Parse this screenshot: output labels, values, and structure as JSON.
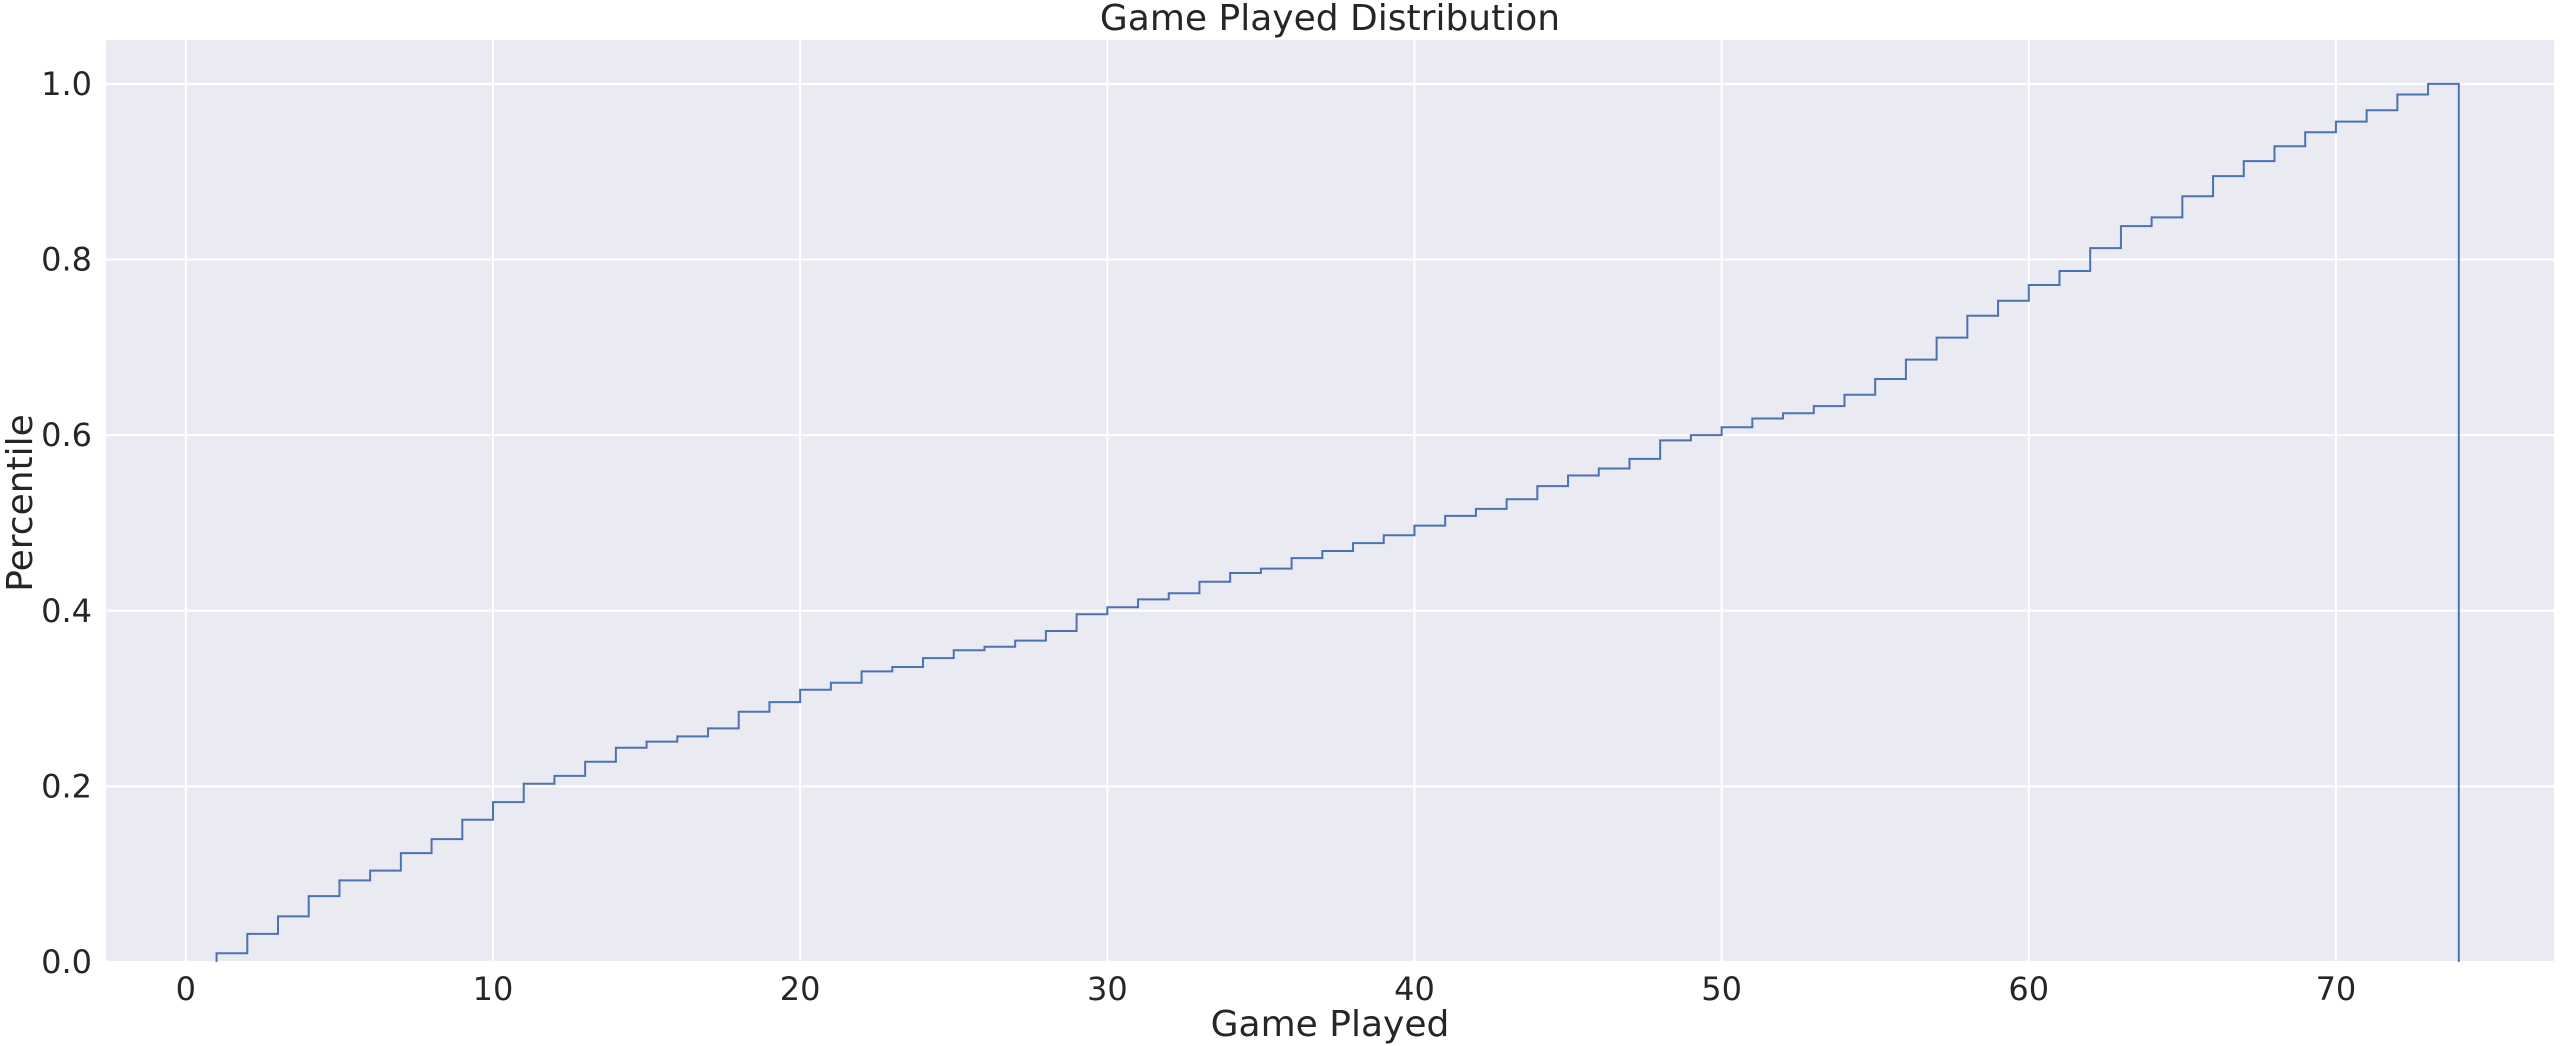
{
  "chart_data": {
    "type": "line",
    "subtype": "cumulative-step",
    "title": "Game Played Distribution",
    "xlabel": "Game Played",
    "ylabel": "Percentile",
    "xlim": [
      -2.6,
      77.1
    ],
    "ylim": [
      0,
      1.05
    ],
    "xticks": [
      0,
      10,
      20,
      30,
      40,
      50,
      60,
      70
    ],
    "yticks": [
      0.0,
      0.2,
      0.4,
      0.6,
      0.8,
      1.0
    ],
    "xtick_labels": [
      "0",
      "10",
      "20",
      "30",
      "40",
      "50",
      "60",
      "70"
    ],
    "ytick_labels": [
      "0.0",
      "0.2",
      "0.4",
      "0.6",
      "0.8",
      "1.0"
    ],
    "grid": true,
    "colors": {
      "background": "#eaeaf2",
      "grid": "#ffffff",
      "line": "#4c72b0",
      "text": "#262626"
    },
    "x": [
      1,
      2,
      3,
      4,
      5,
      6,
      7,
      8,
      9,
      10,
      11,
      12,
      13,
      14,
      15,
      16,
      17,
      18,
      19,
      20,
      21,
      22,
      23,
      24,
      25,
      26,
      27,
      28,
      29,
      30,
      31,
      32,
      33,
      34,
      35,
      36,
      37,
      38,
      39,
      40,
      41,
      42,
      43,
      44,
      45,
      46,
      47,
      48,
      49,
      50,
      51,
      52,
      53,
      54,
      55,
      56,
      57,
      58,
      59,
      60,
      61,
      62,
      63,
      64,
      65,
      66,
      67,
      68,
      69,
      70,
      71,
      72,
      73,
      74
    ],
    "y": [
      0.0,
      0.01,
      0.032,
      0.052,
      0.075,
      0.093,
      0.104,
      0.124,
      0.14,
      0.162,
      0.182,
      0.203,
      0.212,
      0.228,
      0.244,
      0.251,
      0.257,
      0.266,
      0.285,
      0.296,
      0.31,
      0.318,
      0.331,
      0.336,
      0.346,
      0.355,
      0.359,
      0.366,
      0.377,
      0.396,
      0.404,
      0.413,
      0.42,
      0.433,
      0.443,
      0.448,
      0.46,
      0.468,
      0.477,
      0.486,
      0.497,
      0.508,
      0.516,
      0.527,
      0.542,
      0.554,
      0.562,
      0.573,
      0.594,
      0.6,
      0.609,
      0.619,
      0.625,
      0.633,
      0.646,
      0.664,
      0.686,
      0.711,
      0.736,
      0.753,
      0.771,
      0.787,
      0.813,
      0.838,
      0.848,
      0.872,
      0.895,
      0.912,
      0.929,
      0.945,
      0.957,
      0.97,
      0.988,
      1.0
    ]
  }
}
